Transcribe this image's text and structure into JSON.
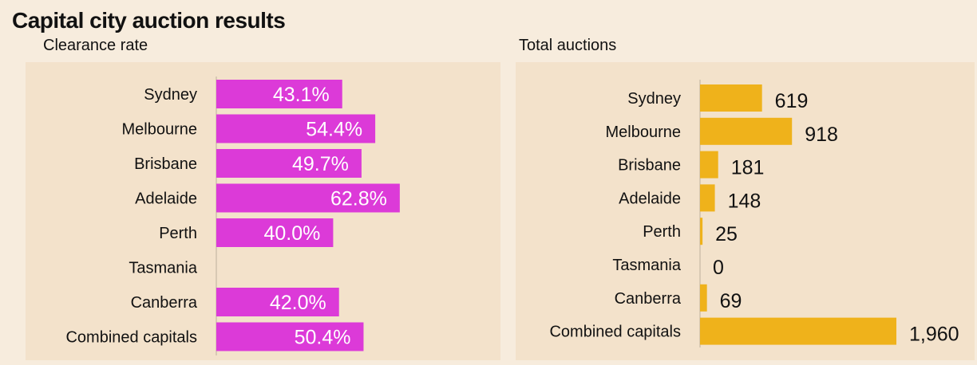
{
  "title": "Capital city auction results",
  "chart_data": [
    {
      "type": "bar",
      "orientation": "horizontal",
      "title": "Clearance rate",
      "categories": [
        "Sydney",
        "Melbourne",
        "Brisbane",
        "Adelaide",
        "Perth",
        "Tasmania",
        "Canberra",
        "Combined capitals"
      ],
      "values": [
        43.1,
        54.4,
        49.7,
        62.8,
        40.0,
        null,
        42.0,
        50.4
      ],
      "labels": [
        "43.1%",
        "54.4%",
        "49.7%",
        "62.8%",
        "40.0%",
        "",
        "42.0%",
        "50.4%"
      ],
      "color": "#dc3ad8",
      "xlim": [
        0,
        100
      ],
      "label_position": "inside"
    },
    {
      "type": "bar",
      "orientation": "horizontal",
      "title": "Total auctions",
      "categories": [
        "Sydney",
        "Melbourne",
        "Brisbane",
        "Adelaide",
        "Perth",
        "Tasmania",
        "Canberra",
        "Combined capitals"
      ],
      "values": [
        619,
        918,
        181,
        148,
        25,
        0,
        69,
        1960
      ],
      "labels": [
        "619",
        "918",
        "181",
        "148",
        "25",
        "0",
        "69",
        "1,960"
      ],
      "color": "#efb21b",
      "xlim": [
        0,
        2000
      ],
      "label_position": "outside"
    }
  ]
}
